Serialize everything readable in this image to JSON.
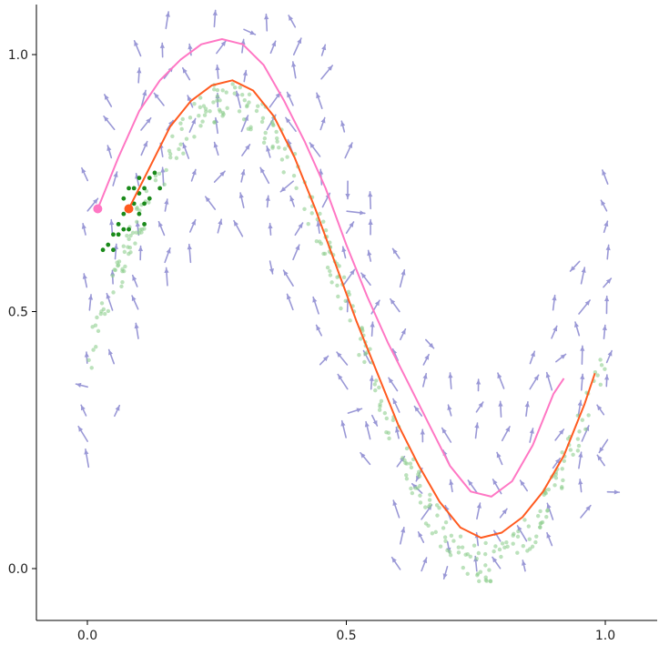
{
  "chart_data": {
    "type": "scatter",
    "title": "",
    "xlabel": "",
    "ylabel": "",
    "xlim": [
      -0.1,
      1.1
    ],
    "ylim": [
      -0.1,
      1.1
    ],
    "grid": false,
    "x_ticks": [
      0.0,
      0.5,
      1.0
    ],
    "y_ticks": [
      0.0,
      0.5,
      1.0
    ],
    "x_tick_labels": [
      "0.0",
      "0.5",
      "1.0"
    ],
    "y_tick_labels": [
      "0.0",
      "0.5",
      "1.0"
    ],
    "colors": {
      "arrows": "#9a98d6",
      "background_points": "#8fcf8f",
      "highlight_points": "#1a8a1a",
      "pink_curve": "#ff77c4",
      "orange_curve": "#ff5a1f"
    },
    "curves": [
      {
        "color": "#ff77c4",
        "points": [
          [
            0.02,
            0.7
          ],
          [
            0.06,
            0.8
          ],
          [
            0.1,
            0.89
          ],
          [
            0.14,
            0.95
          ],
          [
            0.18,
            0.99
          ],
          [
            0.22,
            1.02
          ],
          [
            0.26,
            1.03
          ],
          [
            0.3,
            1.02
          ],
          [
            0.34,
            0.98
          ],
          [
            0.38,
            0.91
          ],
          [
            0.42,
            0.83
          ],
          [
            0.46,
            0.74
          ],
          [
            0.5,
            0.63
          ],
          [
            0.54,
            0.53
          ],
          [
            0.58,
            0.44
          ],
          [
            0.62,
            0.36
          ],
          [
            0.66,
            0.28
          ],
          [
            0.7,
            0.2
          ],
          [
            0.74,
            0.15
          ],
          [
            0.78,
            0.14
          ],
          [
            0.82,
            0.17
          ],
          [
            0.86,
            0.24
          ],
          [
            0.9,
            0.34
          ],
          [
            0.92,
            0.37
          ]
        ],
        "start_marker": [
          0.02,
          0.7
        ]
      },
      {
        "color": "#ff5a1f",
        "points": [
          [
            0.08,
            0.7
          ],
          [
            0.12,
            0.78
          ],
          [
            0.16,
            0.86
          ],
          [
            0.2,
            0.91
          ],
          [
            0.24,
            0.94
          ],
          [
            0.28,
            0.95
          ],
          [
            0.32,
            0.93
          ],
          [
            0.36,
            0.88
          ],
          [
            0.4,
            0.8
          ],
          [
            0.44,
            0.7
          ],
          [
            0.48,
            0.59
          ],
          [
            0.52,
            0.48
          ],
          [
            0.56,
            0.38
          ],
          [
            0.6,
            0.28
          ],
          [
            0.64,
            0.2
          ],
          [
            0.68,
            0.13
          ],
          [
            0.72,
            0.08
          ],
          [
            0.76,
            0.06
          ],
          [
            0.8,
            0.07
          ],
          [
            0.84,
            0.1
          ],
          [
            0.88,
            0.15
          ],
          [
            0.92,
            0.22
          ],
          [
            0.96,
            0.32
          ],
          [
            0.98,
            0.38
          ]
        ],
        "start_marker": [
          0.08,
          0.7
        ]
      }
    ],
    "highlight_points": [
      [
        0.03,
        0.62
      ],
      [
        0.04,
        0.63
      ],
      [
        0.05,
        0.62
      ],
      [
        0.06,
        0.65
      ],
      [
        0.06,
        0.67
      ],
      [
        0.07,
        0.66
      ],
      [
        0.07,
        0.69
      ],
      [
        0.08,
        0.66
      ],
      [
        0.08,
        0.7
      ],
      [
        0.09,
        0.71
      ],
      [
        0.09,
        0.74
      ],
      [
        0.1,
        0.73
      ],
      [
        0.1,
        0.76
      ],
      [
        0.11,
        0.71
      ],
      [
        0.11,
        0.74
      ],
      [
        0.12,
        0.76
      ],
      [
        0.12,
        0.72
      ],
      [
        0.13,
        0.77
      ],
      [
        0.14,
        0.74
      ],
      [
        0.07,
        0.72
      ],
      [
        0.11,
        0.67
      ],
      [
        0.08,
        0.74
      ],
      [
        0.05,
        0.65
      ],
      [
        0.1,
        0.69
      ]
    ],
    "background_points_count": 360,
    "arrow_grid": {
      "x_start": 0.0,
      "x_end": 1.0,
      "x_step": 0.05,
      "y_start": 0.0,
      "y_end": 1.05,
      "y_step": 0.05
    }
  }
}
